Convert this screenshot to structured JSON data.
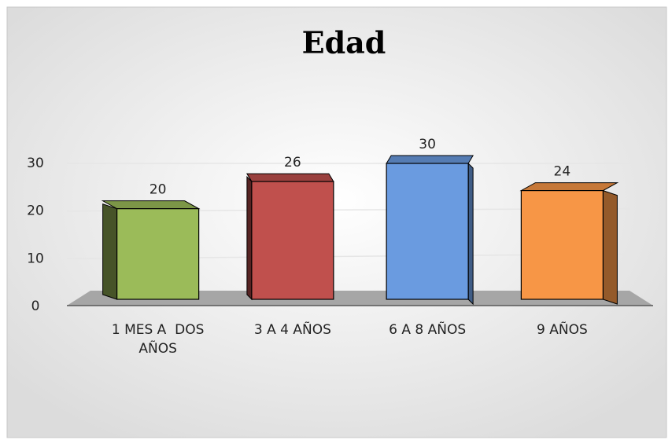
{
  "chart_data": {
    "type": "bar3d",
    "title": "Edad",
    "categories": [
      "1 MES A  DOS AÑOS",
      "3 A 4 AÑOS",
      "6 A 8 AÑOS",
      "9 AÑOS"
    ],
    "series": [
      {
        "name": "Edad",
        "values": [
          20,
          26,
          30,
          24
        ],
        "colors": [
          "#9bbb59",
          "#c0504d",
          "#6a9be0",
          "#f79646"
        ]
      }
    ],
    "ylim": [
      0,
      30
    ],
    "yticks": [
      0,
      10,
      20,
      30
    ],
    "grid": true
  }
}
